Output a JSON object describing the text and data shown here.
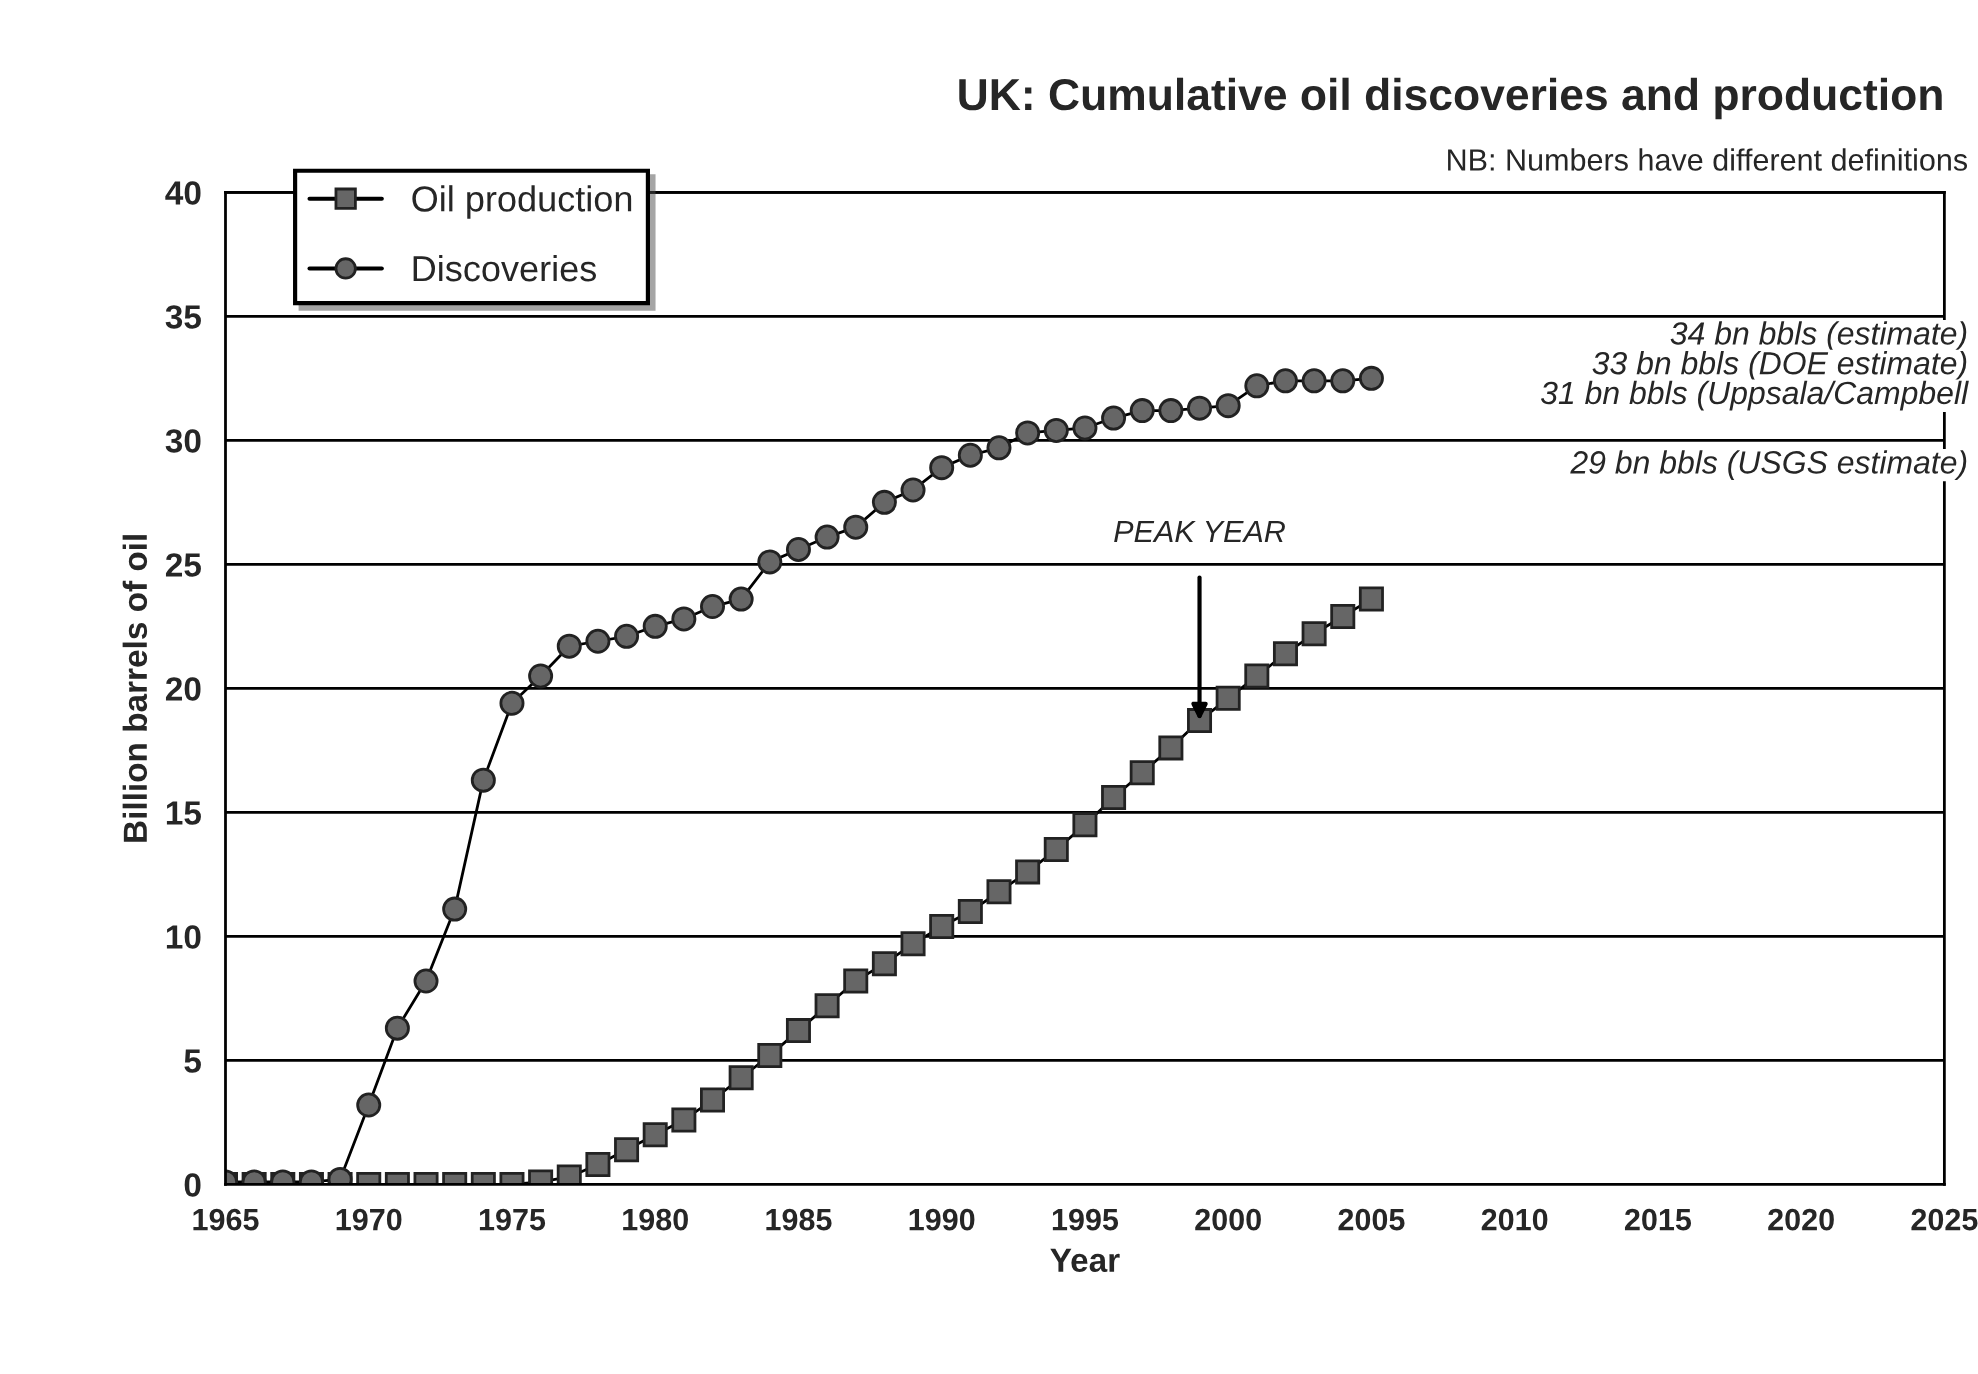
{
  "chart_data": {
    "type": "line",
    "title": "UK: Cumulative oil discoveries and production",
    "xlabel": "Year",
    "ylabel": "Billion barrels of oil",
    "x": [
      1965,
      1966,
      1967,
      1968,
      1969,
      1970,
      1971,
      1972,
      1973,
      1974,
      1975,
      1976,
      1977,
      1978,
      1979,
      1980,
      1981,
      1982,
      1983,
      1984,
      1985,
      1986,
      1987,
      1988,
      1989,
      1990,
      1991,
      1992,
      1993,
      1994,
      1995,
      1996,
      1997,
      1998,
      1999,
      2000,
      2001,
      2002,
      2003,
      2004,
      2005
    ],
    "series": [
      {
        "name": "Oil production",
        "color": "#666666",
        "marker": "square",
        "values": [
          0,
          0,
          0,
          0,
          0,
          0,
          0,
          0,
          0,
          0,
          0,
          0.1,
          0.3,
          0.8,
          1.4,
          2.0,
          2.6,
          3.4,
          4.3,
          5.2,
          6.2,
          7.2,
          8.2,
          8.9,
          9.7,
          10.4,
          11.0,
          11.8,
          12.6,
          13.5,
          14.5,
          15.6,
          16.6,
          17.6,
          18.7,
          19.6,
          20.5,
          21.4,
          22.2,
          22.9,
          23.6
        ]
      },
      {
        "name": "Discoveries",
        "color": "#666666",
        "marker": "circle",
        "values": [
          0.1,
          0.1,
          0.1,
          0.1,
          0.2,
          3.2,
          6.3,
          8.2,
          11.1,
          16.3,
          19.4,
          20.5,
          21.7,
          21.9,
          22.1,
          22.5,
          22.8,
          23.3,
          23.6,
          25.1,
          25.6,
          26.1,
          26.5,
          27.5,
          28.0,
          28.9,
          29.4,
          29.7,
          30.3,
          30.4,
          30.5,
          30.9,
          31.2,
          31.2,
          31.3,
          31.4,
          32.2,
          32.4,
          32.4,
          32.4,
          32.5
        ]
      }
    ],
    "xlim": [
      1965,
      2025
    ],
    "xticks": [
      1965,
      1970,
      1975,
      1980,
      1985,
      1990,
      1995,
      2000,
      2005,
      2010,
      2015,
      2020,
      2025
    ],
    "ylim": [
      0,
      40
    ],
    "yticks": [
      0,
      5,
      10,
      15,
      20,
      25,
      30,
      35,
      40
    ],
    "grid": "y",
    "legend": "top left",
    "line_style": "solid",
    "annotations": [
      {
        "text": "PEAK YEAR",
        "x": 1999,
        "y": 18.7
      },
      "NB: Numbers have different definitions",
      "34 bn bbls (estimate)",
      "33 bn bbls (DOE estimate)",
      "31 bn bbls (Uppsala/Campbell",
      "29 bn bbls (USGS estimate)"
    ]
  }
}
